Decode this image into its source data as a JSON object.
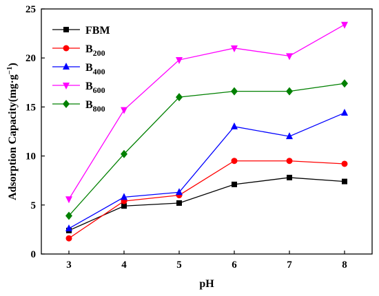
{
  "chart_data": {
    "type": "line",
    "xlabel": "pH",
    "ylabel": "Adsorption Capacity(mg·g",
    "ylabel_sup": "−1",
    "ylabel_end": ")",
    "x": [
      3,
      4,
      5,
      6,
      7,
      8
    ],
    "xlim": [
      2.5,
      8.5
    ],
    "ylim": [
      0,
      25
    ],
    "xticks": [
      "3",
      "4",
      "5",
      "6",
      "7",
      "8"
    ],
    "yticks": [
      "0",
      "5",
      "10",
      "15",
      "20",
      "25"
    ],
    "legend_position": "top-left",
    "series": [
      {
        "name": "FBM",
        "base": "FBM",
        "sub": "",
        "color": "#000000",
        "marker": "square",
        "values": [
          2.4,
          4.9,
          5.2,
          7.1,
          7.8,
          7.4
        ]
      },
      {
        "name": "B200",
        "base": "B",
        "sub": "200",
        "color": "#ff0000",
        "marker": "circle",
        "values": [
          1.6,
          5.4,
          6.0,
          9.5,
          9.5,
          9.2
        ]
      },
      {
        "name": "B400",
        "base": "B",
        "sub": "400",
        "color": "#0000ff",
        "marker": "triangle-up",
        "values": [
          2.6,
          5.8,
          6.3,
          13.0,
          12.0,
          14.4
        ]
      },
      {
        "name": "B600",
        "base": "B",
        "sub": "600",
        "color": "#ff00ff",
        "marker": "triangle-down",
        "values": [
          5.6,
          14.7,
          19.8,
          21.0,
          20.2,
          23.4
        ]
      },
      {
        "name": "B800",
        "base": "B",
        "sub": "800",
        "color": "#008000",
        "marker": "diamond",
        "values": [
          3.9,
          10.2,
          16.0,
          16.6,
          16.6,
          17.4
        ]
      }
    ]
  }
}
